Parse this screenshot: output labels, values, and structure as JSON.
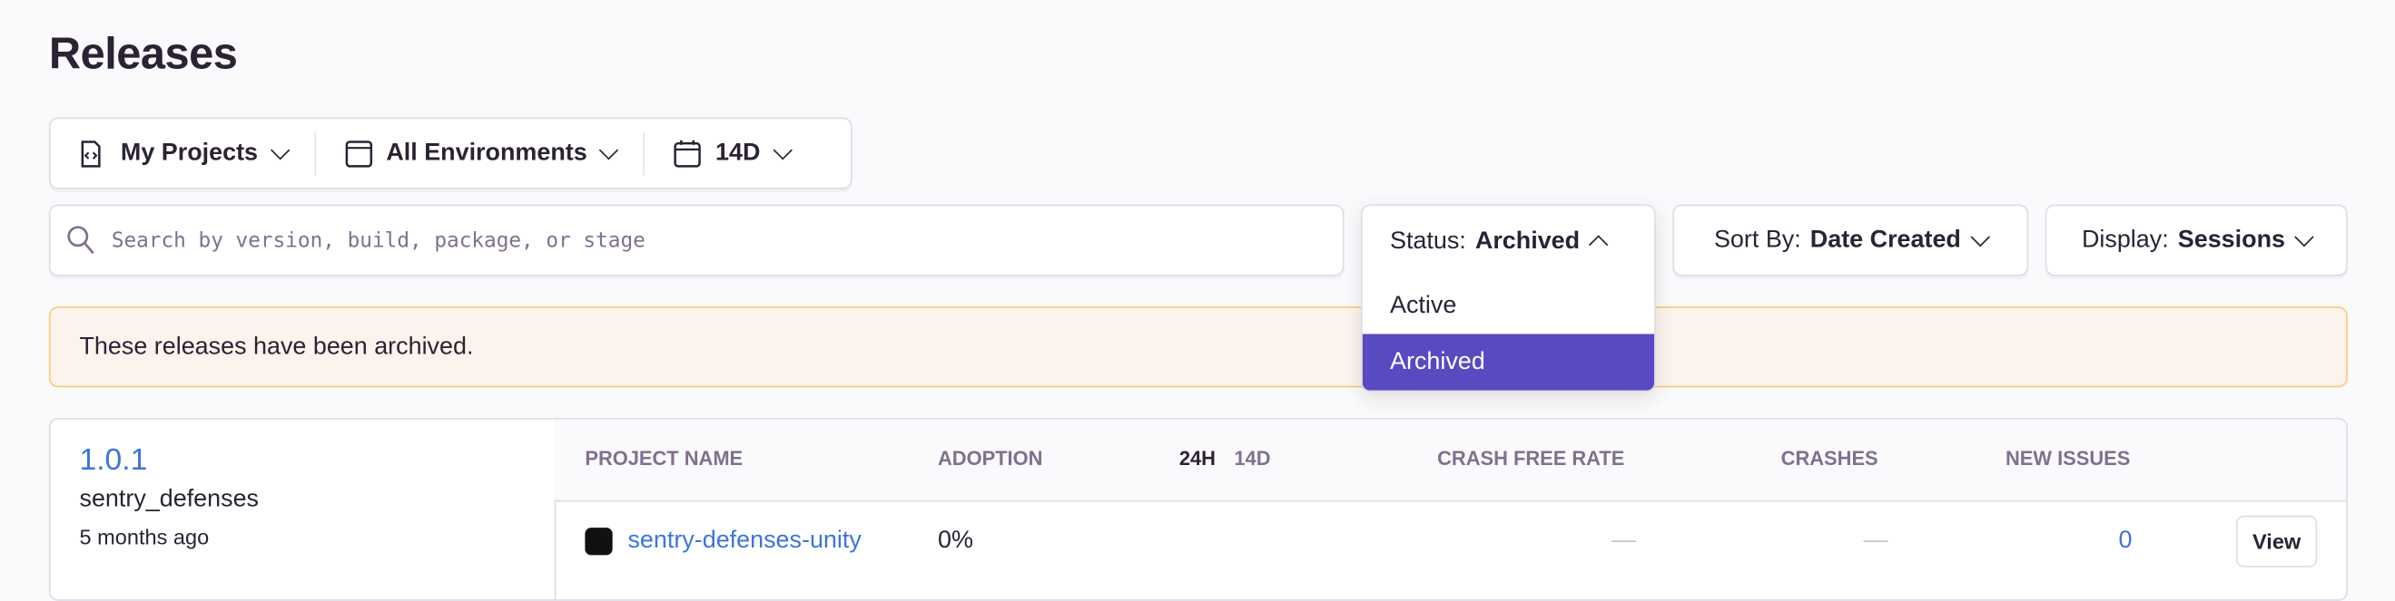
{
  "page": {
    "title": "Releases"
  },
  "filters": {
    "projects": "My Projects",
    "environments": "All Environments",
    "period": "14D"
  },
  "search": {
    "placeholder": "Search by version, build, package, or stage"
  },
  "status": {
    "label": "Status:",
    "value": "Archived",
    "options": [
      "Active",
      "Archived"
    ],
    "selected": "Archived"
  },
  "sort": {
    "label": "Sort By:",
    "value": "Date Created"
  },
  "display": {
    "label": "Display:",
    "value": "Sessions"
  },
  "alert": {
    "text": "These releases have been archived."
  },
  "colors": {
    "accent": "#584ac0",
    "link": "#3d74db",
    "alert_bg": "#fbf3ec",
    "alert_border": "#f5cf7d"
  },
  "release": {
    "version": "1.0.1",
    "project": "sentry_defenses",
    "age": "5 months ago",
    "columns": {
      "project_name": "Project Name",
      "adoption": "Adoption",
      "p24h": "24H",
      "p14d": "14D",
      "crash_free_rate": "Crash Free Rate",
      "crashes": "Crashes",
      "new_issues": "New Issues"
    },
    "rows": [
      {
        "project": "sentry-defenses-unity",
        "adoption": "0%",
        "crash_free_rate": "—",
        "crashes": "—",
        "new_issues": "0",
        "action": "View"
      }
    ]
  }
}
